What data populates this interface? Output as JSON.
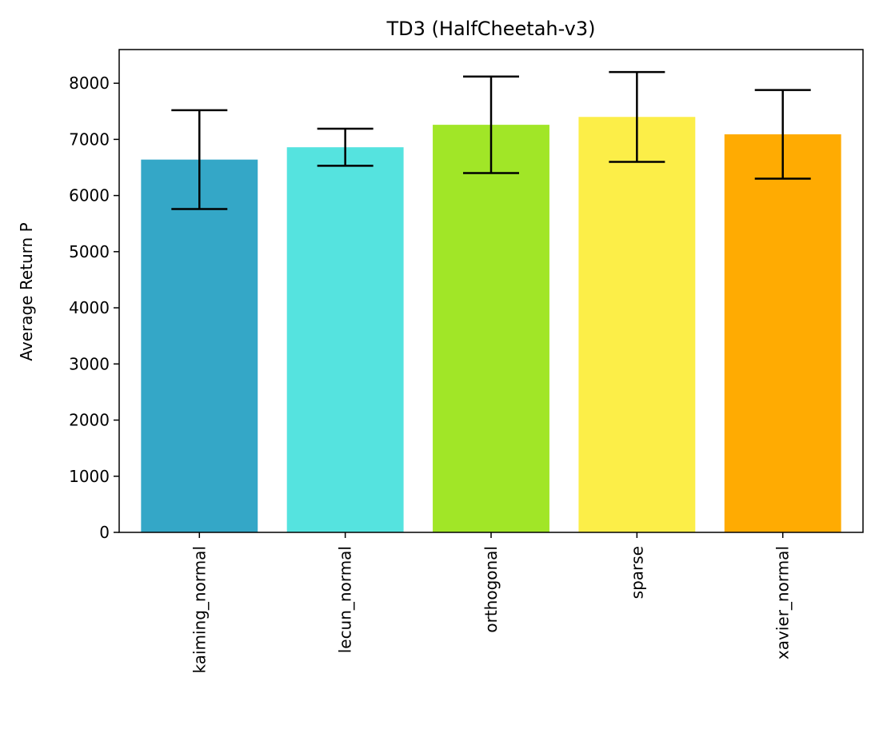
{
  "chart_data": {
    "type": "bar",
    "title": "TD3 (HalfCheetah-v3)",
    "xlabel": "",
    "ylabel": "Average Return P",
    "categories": [
      "kaiming_normal",
      "lecun_normal",
      "orthogonal",
      "sparse",
      "xavier_normal"
    ],
    "values": [
      6640,
      6860,
      7260,
      7400,
      7090
    ],
    "errors": [
      880,
      330,
      860,
      800,
      790
    ],
    "colors": [
      "#34a7c7",
      "#55e3df",
      "#a1e627",
      "#fcee48",
      "#ffab02"
    ],
    "ylim": [
      0,
      8600
    ],
    "yticks": [
      0,
      1000,
      2000,
      3000,
      4000,
      5000,
      6000,
      7000,
      8000
    ],
    "grid": false,
    "legend": "none"
  }
}
